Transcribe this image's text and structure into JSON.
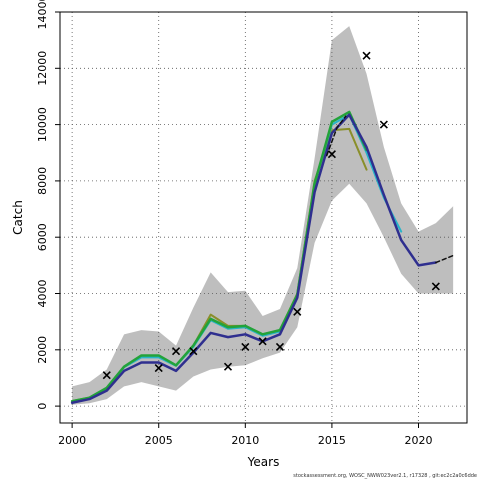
{
  "chart_data": {
    "type": "line",
    "xlabel": "Years",
    "ylabel": "Catch",
    "xlim": [
      1999.3,
      2022.8
    ],
    "ylim": [
      -600,
      14000
    ],
    "x_ticks": [
      2000,
      2005,
      2010,
      2015,
      2020
    ],
    "y_ticks": [
      0,
      2000,
      4000,
      6000,
      8000,
      10000,
      12000,
      14000
    ],
    "grid": true,
    "grid_style": "dotted",
    "footer": "stockassessment.org, WOSC_NWW023ver2.1, r17328 , git:ec2c2a0c6dde",
    "band": {
      "name": "",
      "color": "#bebebe",
      "x": [
        2000,
        2001,
        2002,
        2003,
        2004,
        2005,
        2006,
        2007,
        2008,
        2009,
        2010,
        2011,
        2012,
        2013,
        2014,
        2015,
        2016,
        2017,
        2018,
        2019,
        2020,
        2021,
        2022
      ],
      "upper": [
        700,
        850,
        1300,
        2550,
        2700,
        2650,
        2150,
        3500,
        4750,
        4050,
        4100,
        3200,
        3450,
        4900,
        8800,
        13000,
        13500,
        11800,
        9200,
        7200,
        6200,
        6500,
        7100
      ],
      "lower": [
        50,
        100,
        250,
        700,
        850,
        700,
        550,
        1050,
        1300,
        1400,
        1450,
        1700,
        1900,
        2800,
        5800,
        7300,
        7900,
        7200,
        6000,
        4700,
        4000,
        4000,
        4000
      ]
    },
    "series": [
      {
        "name": "",
        "color": "#8a8f2a",
        "width": 2,
        "x": [
          2000,
          2001,
          2002,
          2003,
          2004,
          2005,
          2006,
          2007,
          2008,
          2009,
          2010,
          2011,
          2012,
          2013,
          2014,
          2015,
          2016,
          2017
        ],
        "y": [
          180,
          300,
          650,
          1400,
          1750,
          1750,
          1450,
          2150,
          3250,
          2850,
          2850,
          2550,
          2700,
          4000,
          8000,
          9800,
          9850,
          8400
        ]
      },
      {
        "name": "",
        "color": "#27b4c8",
        "width": 2,
        "x": [
          2000,
          2001,
          2002,
          2003,
          2004,
          2005,
          2006,
          2007,
          2008,
          2009,
          2010,
          2011,
          2012,
          2013,
          2014,
          2015,
          2016,
          2017,
          2018,
          2019
        ],
        "y": [
          170,
          290,
          640,
          1380,
          1730,
          1730,
          1430,
          2100,
          3050,
          2750,
          2800,
          2500,
          2650,
          3950,
          7900,
          10000,
          10350,
          9000,
          7400,
          6200
        ]
      },
      {
        "name": "",
        "color": "#23a33a",
        "width": 2.5,
        "x": [
          2000,
          2001,
          2002,
          2003,
          2004,
          2005,
          2006,
          2007,
          2008,
          2009,
          2010,
          2011,
          2012,
          2013,
          2014,
          2015,
          2016,
          2017
        ],
        "y": [
          175,
          300,
          650,
          1400,
          1800,
          1800,
          1450,
          2150,
          3100,
          2800,
          2850,
          2550,
          2700,
          3950,
          7900,
          10100,
          10450,
          9100
        ]
      },
      {
        "name": "",
        "color": "#2f2f8f",
        "width": 2.5,
        "x": [
          2000,
          2001,
          2002,
          2003,
          2004,
          2005,
          2006,
          2007,
          2008,
          2009,
          2010,
          2011,
          2012,
          2013,
          2014,
          2015,
          2016,
          2017,
          2018,
          2019,
          2020,
          2021
        ],
        "y": [
          120,
          250,
          550,
          1250,
          1550,
          1550,
          1250,
          1900,
          2600,
          2450,
          2550,
          2300,
          2550,
          3850,
          7600,
          9700,
          10350,
          9200,
          7500,
          5900,
          5000,
          5100
        ]
      },
      {
        "name": "",
        "color": "#111111",
        "width": 1.5,
        "dashed": true,
        "x": [
          2014.7,
          2015.3,
          2015.8
        ],
        "y": [
          8900,
          9900,
          10300
        ]
      },
      {
        "name": "",
        "color": "#111111",
        "width": 1.5,
        "dashed": true,
        "x": [
          2021,
          2022
        ],
        "y": [
          5100,
          5350
        ]
      }
    ],
    "observations": {
      "name": "",
      "marker": "x",
      "x": [
        2002,
        2005,
        2006,
        2007,
        2009,
        2010,
        2011,
        2012,
        2013,
        2015,
        2017,
        2018,
        2021
      ],
      "y": [
        1100,
        1350,
        1950,
        1950,
        1400,
        2100,
        2300,
        2100,
        3350,
        8950,
        12450,
        10000,
        4250
      ]
    }
  }
}
